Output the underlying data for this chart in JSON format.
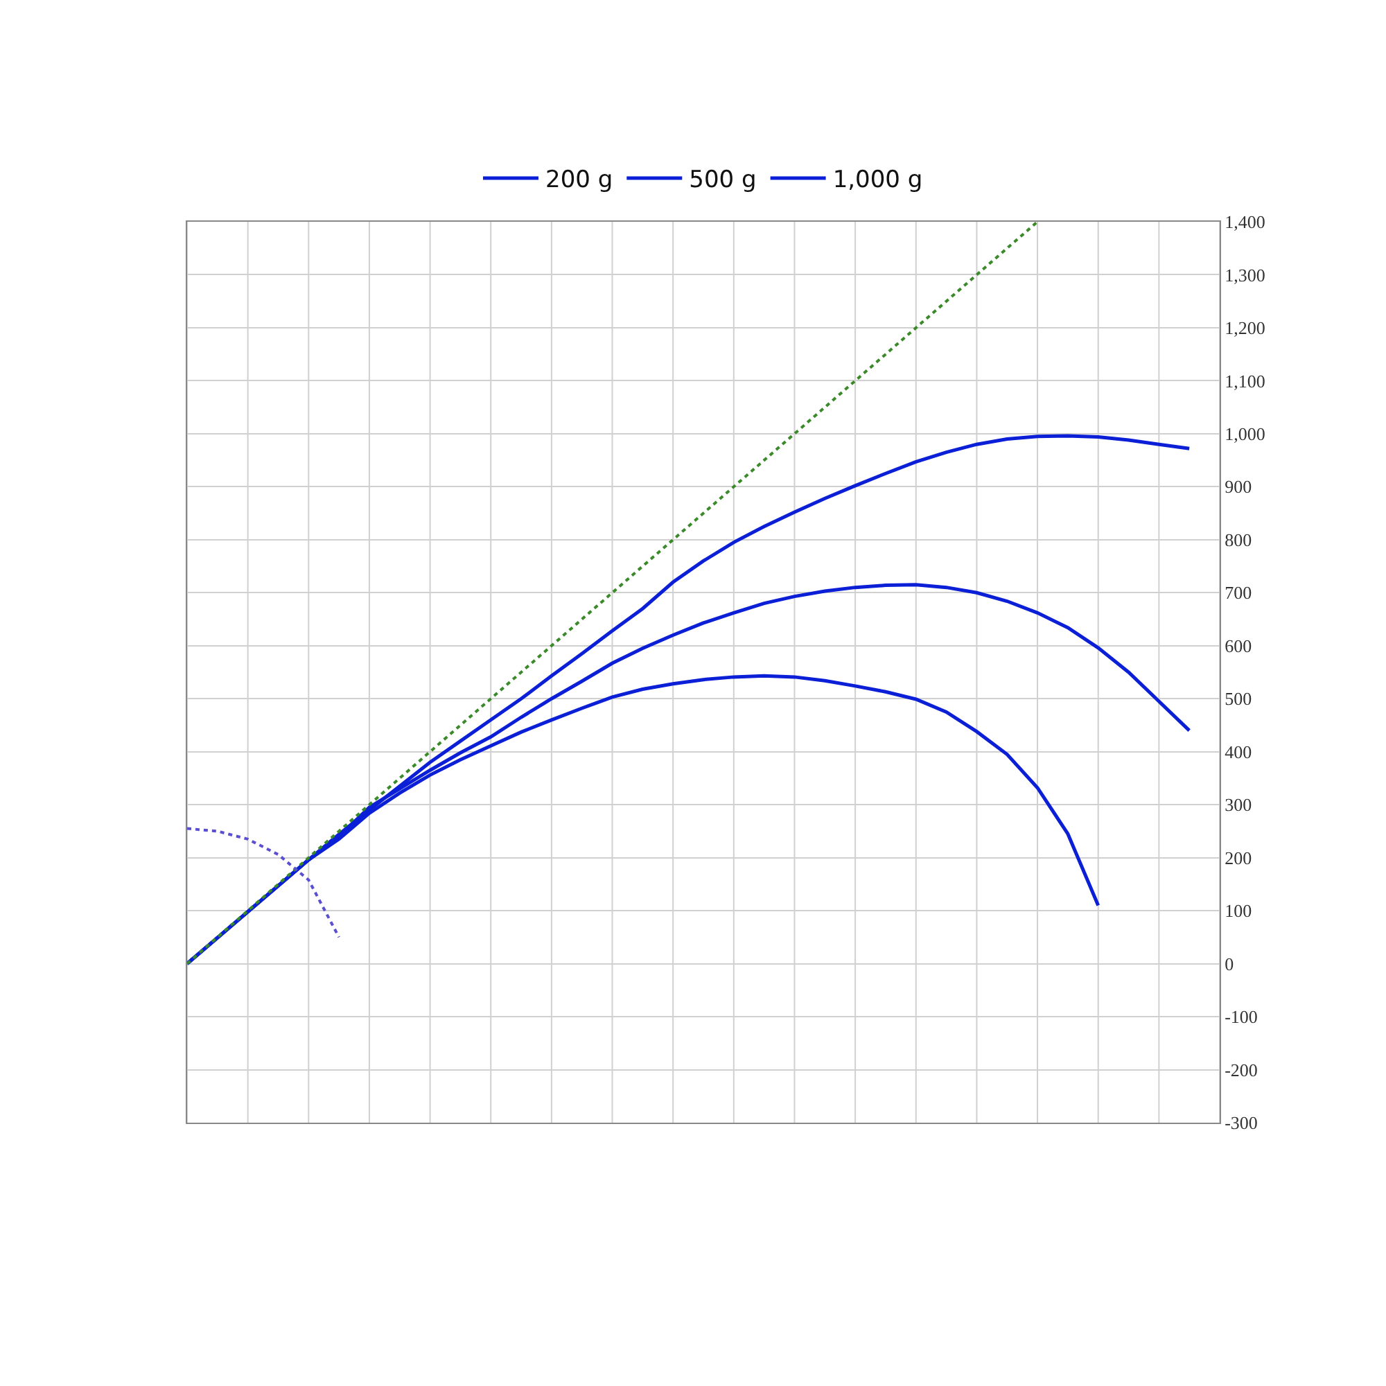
{
  "chart_data": {
    "type": "line",
    "categories": [
      null,
      null,
      null,
      null,
      null,
      null,
      null,
      null,
      null,
      null,
      null,
      null,
      null,
      null,
      null,
      null,
      null,
      null,
      null,
      null,
      null,
      null,
      null,
      null,
      null,
      null,
      null,
      null,
      null,
      null,
      null,
      null,
      null,
      null,
      null
    ],
    "series": [
      {
        "name": "200 g",
        "color": "#0a1fd6",
        "values": [
          0,
          49,
          98,
          147,
          196,
          244,
          290,
          335,
          380,
          420,
          460,
          500,
          543,
          585,
          628,
          670,
          720,
          760,
          795,
          825,
          852,
          878,
          902,
          925,
          947,
          965,
          980,
          990,
          995,
          996,
          994,
          988,
          980,
          972,
          null
        ]
      },
      {
        "name": "500 g",
        "color": "#0a1fd6",
        "values": [
          0,
          49,
          98,
          147,
          196,
          240,
          295,
          330,
          365,
          398,
          428,
          465,
          500,
          533,
          567,
          595,
          620,
          643,
          662,
          680,
          693,
          703,
          710,
          714,
          715,
          710,
          700,
          684,
          662,
          634,
          596,
          550,
          495,
          440,
          null
        ]
      },
      {
        "name": "1,000 g",
        "color": "#0a1fd6",
        "values": [
          0,
          49,
          98,
          147,
          196,
          235,
          284,
          322,
          356,
          385,
          411,
          437,
          460,
          482,
          503,
          518,
          528,
          536,
          541,
          543,
          541,
          534,
          524,
          513,
          499,
          475,
          438,
          395,
          332,
          245,
          110,
          null,
          null,
          null,
          null
        ]
      },
      {
        "color": "#3a8a2a",
        "line_style": "dotted",
        "values": [
          0,
          50,
          100,
          150,
          200,
          250,
          300,
          350,
          400,
          450,
          500,
          550,
          600,
          650,
          700,
          750,
          800,
          850,
          900,
          950,
          1000,
          1050,
          1100,
          1150,
          1200,
          1250,
          1300,
          1350,
          1400,
          null,
          null,
          null,
          null,
          null,
          null
        ]
      },
      {
        "color": "#5a4fd0",
        "line_style": "dotted",
        "values": [
          255,
          250,
          235,
          206,
          158,
          50,
          null,
          null,
          null,
          null,
          null,
          null,
          null,
          null,
          null,
          null,
          null,
          null,
          null,
          null,
          null,
          null,
          null,
          null,
          null,
          null,
          null,
          null,
          null,
          null,
          null,
          null,
          null,
          null,
          null
        ]
      }
    ],
    "ylim": [
      -300,
      1400
    ],
    "yticks": [
      -300,
      -200,
      -100,
      0,
      100,
      200,
      300,
      400,
      500,
      600,
      700,
      800,
      900,
      {
        "value": 1000,
        "label": "1,000"
      },
      {
        "value": 1100,
        "label": "1,100"
      },
      {
        "value": 1200,
        "label": "1,200"
      },
      {
        "value": 1300,
        "label": "1,300"
      },
      {
        "value": 1400,
        "label": "1,400"
      }
    ],
    "tick_labels": "y",
    "grid": true,
    "legend": "top",
    "line_style": "solid"
  }
}
